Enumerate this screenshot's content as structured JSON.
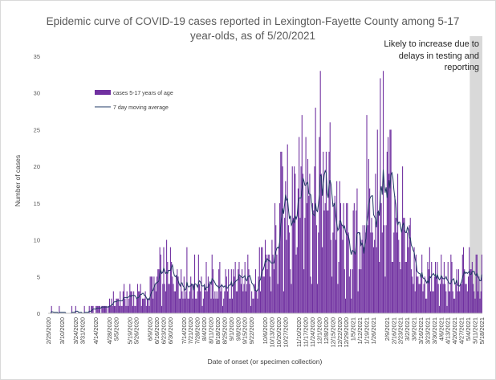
{
  "chart_data": {
    "type": "bar",
    "title_lines": [
      "Epidemic curve of COVID-19 cases reported in Lexington-Fayette County among 5-17",
      "year-olds, as of 5/20/2021"
    ],
    "xlabel": "Date of onset (or specimen collection)",
    "ylabel": "Number of cases",
    "ylim": [
      0,
      35
    ],
    "yticks": [
      0,
      5,
      10,
      15,
      20,
      25,
      30,
      35
    ],
    "grid": false,
    "legend_position": "upper-left",
    "x_range": [
      "2/25/2020",
      "5/18/2021"
    ],
    "x_ticks": [
      "2/25/2020",
      "3/10/2020",
      "3/24/2020",
      "3/31/2020",
      "4/14/2020",
      "4/28/2020",
      "5/5/2020",
      "5/19/2020",
      "5/26/2020",
      "6/9/2020",
      "6/16/2020",
      "6/23/2020",
      "6/30/2020",
      "7/14/2020",
      "7/21/2020",
      "7/28/2020",
      "8/4/2020",
      "8/11/2020",
      "8/18/2020",
      "8/25/2020",
      "9/1/2020",
      "9/8/2020",
      "9/15/2020",
      "9/22/2020",
      "10/6/2020",
      "10/13/2020",
      "10/20/2020",
      "10/27/2020",
      "11/10/2020",
      "11/17/2020",
      "11/24/2020",
      "12/1/2020",
      "12/8/2020",
      "12/15/2020",
      "12/22/2020",
      "12/29/2020",
      "1/5/2021",
      "1/12/2021",
      "1/19/2021",
      "1/26/2021",
      "2/9/2021",
      "2/16/2021",
      "2/23/2021",
      "3/2/2021",
      "3/9/2021",
      "3/16/2021",
      "3/23/2021",
      "3/30/2021",
      "4/6/2021",
      "4/13/2021",
      "4/20/2021",
      "4/27/2021",
      "5/4/2021",
      "5/11/2021",
      "5/18/2021"
    ],
    "series": [
      {
        "name": "cases 5-17 years of age",
        "type": "bar",
        "color": "#7030a0",
        "weekly_values": [
          0,
          0,
          0,
          0.3,
          0.3,
          0.3,
          0.6,
          0.6,
          0.8,
          1.2,
          1.5,
          2.2,
          2.6,
          2.4,
          2.1,
          3.2,
          4.6,
          5.0,
          6.0,
          5.8,
          5.2,
          4.5,
          4.6,
          4.3,
          4.2,
          4.0,
          4.0,
          3.9,
          4.2,
          4.7,
          4.9,
          5.0,
          6.2,
          8.1,
          11.5,
          15.0,
          18.0,
          19.8,
          18.5,
          18.1,
          18.2,
          17.6,
          14.5,
          10.5,
          8.5,
          8.2,
          10.8,
          14.7,
          17.5,
          18.3,
          17.5,
          15.6,
          12.0,
          8.0,
          6.0,
          5.2,
          5.0,
          4.8,
          4.5,
          4.4,
          4.2,
          4.8,
          4.9,
          4.8,
          4.6,
          5.0,
          5.8,
          5.5,
          2.6,
          2.0
        ]
      },
      {
        "name": "7 day moving average",
        "type": "line",
        "color": "#1f3864",
        "weekly_values": [
          0,
          0,
          0,
          0.3,
          0.3,
          0.3,
          0.6,
          0.6,
          0.8,
          1.2,
          1.5,
          2.2,
          2.6,
          2.4,
          2.1,
          3.2,
          4.6,
          5.0,
          6.0,
          5.8,
          5.2,
          4.5,
          4.6,
          4.3,
          4.2,
          4.0,
          4.0,
          3.9,
          4.2,
          4.7,
          4.9,
          5.0,
          6.2,
          8.1,
          11.5,
          15.0,
          18.0,
          19.8,
          18.5,
          18.1,
          18.2,
          17.6,
          14.5,
          10.5,
          8.5,
          8.2,
          10.8,
          14.7,
          17.5,
          18.3,
          17.5,
          15.6,
          12.0,
          8.0,
          6.0,
          5.2,
          5.0,
          4.8,
          4.5,
          4.4,
          4.2,
          4.8,
          4.9,
          4.8,
          4.6,
          5.0,
          5.8,
          5.5,
          2.6,
          2.0
        ]
      }
    ],
    "annotation": {
      "lines": [
        "Likely to increase due to",
        "delays in testing and",
        "reporting"
      ],
      "shaded_from": "5/6/2021",
      "shaded_to": "5/18/2021"
    },
    "colors": {
      "shade": "#d9d9d9",
      "text": "#595959"
    }
  }
}
